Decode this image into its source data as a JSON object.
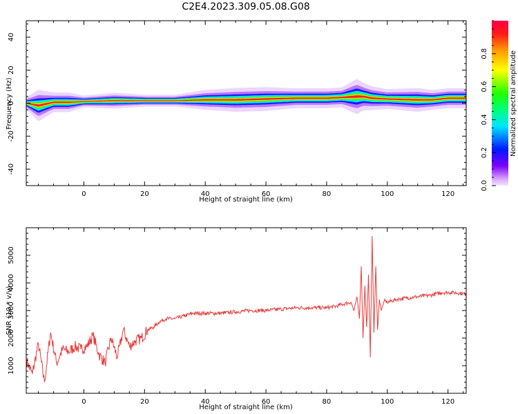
{
  "figure_title": "C2E4.2023.309.05.08.G08",
  "chart_data": [
    {
      "type": "heatmap",
      "xlabel": "Height of straight line (km)",
      "ylabel": "Frequency (Hz)",
      "xlim": [
        -19,
        126
      ],
      "ylim": [
        -50,
        50
      ],
      "xticks": [
        0,
        20,
        40,
        60,
        80,
        100,
        120
      ],
      "yticks": [
        -40,
        -20,
        0,
        20,
        40
      ],
      "colorbar": {
        "label": "Normalized spectral amplitude",
        "range": [
          0.0,
          1.0
        ],
        "ticks": [
          0.0,
          0.2,
          0.4,
          0.6,
          0.8
        ],
        "colormap": "gist_rainbow_r"
      },
      "ridge": {
        "x": [
          -19,
          -15,
          -10,
          -5,
          0,
          10,
          20,
          30,
          40,
          50,
          60,
          70,
          80,
          85,
          90,
          92,
          95,
          100,
          110,
          115,
          120,
          126
        ],
        "center_hz": [
          0,
          -1.5,
          0.5,
          0.5,
          1,
          1.5,
          1.5,
          1.5,
          2,
          2,
          2.5,
          3,
          3,
          3.5,
          4,
          4,
          3,
          2.5,
          2,
          2,
          3,
          3
        ],
        "halfwidth_hz": [
          1.5,
          4,
          2.5,
          2.5,
          1.5,
          2,
          1.5,
          1.5,
          2.5,
          3,
          3,
          2.5,
          2.5,
          2.5,
          4.5,
          3.5,
          3,
          2.5,
          3,
          2.5,
          2.5,
          2.5
        ]
      }
    },
    {
      "type": "line",
      "xlabel": "Height of straight line (km)",
      "ylabel": "SNR (10 * v/v)",
      "xlim": [
        -19,
        126
      ],
      "ylim": [
        0,
        6000
      ],
      "xticks": [
        0,
        20,
        40,
        60,
        80,
        100,
        120
      ],
      "yticks": [
        1000,
        2000,
        3000,
        4000,
        5000
      ],
      "series": [
        {
          "color": "#e83a3a",
          "x": [
            -19,
            -17,
            -15,
            -13,
            -11,
            -9,
            -7,
            -5,
            -3,
            -1,
            1,
            3,
            5,
            7,
            9,
            11,
            13,
            15,
            17,
            19,
            21,
            23,
            25,
            27,
            30,
            33,
            36,
            40,
            45,
            50,
            55,
            60,
            65,
            70,
            75,
            80,
            83,
            86,
            88,
            89,
            90,
            90.8,
            91.4,
            92,
            92.6,
            93.2,
            93.8,
            94.4,
            95,
            95.6,
            96.2,
            96.8,
            97.4,
            98,
            99,
            100,
            103,
            106,
            110,
            114,
            118,
            122,
            126
          ],
          "y": [
            1200,
            700,
            1800,
            400,
            2200,
            1100,
            1600,
            1500,
            1700,
            1600,
            1700,
            2100,
            1400,
            1100,
            2000,
            1300,
            2300,
            1700,
            1900,
            2000,
            2300,
            2400,
            2600,
            2700,
            2700,
            2800,
            2900,
            2900,
            2900,
            2950,
            3000,
            3000,
            3050,
            3100,
            3100,
            3100,
            3150,
            3250,
            3300,
            3000,
            3500,
            2700,
            4600,
            2000,
            3900,
            2400,
            4300,
            1300,
            5700,
            2200,
            4600,
            2300,
            3400,
            3000,
            3350,
            3300,
            3400,
            3450,
            3500,
            3550,
            3650,
            3650,
            3600
          ]
        }
      ]
    }
  ]
}
